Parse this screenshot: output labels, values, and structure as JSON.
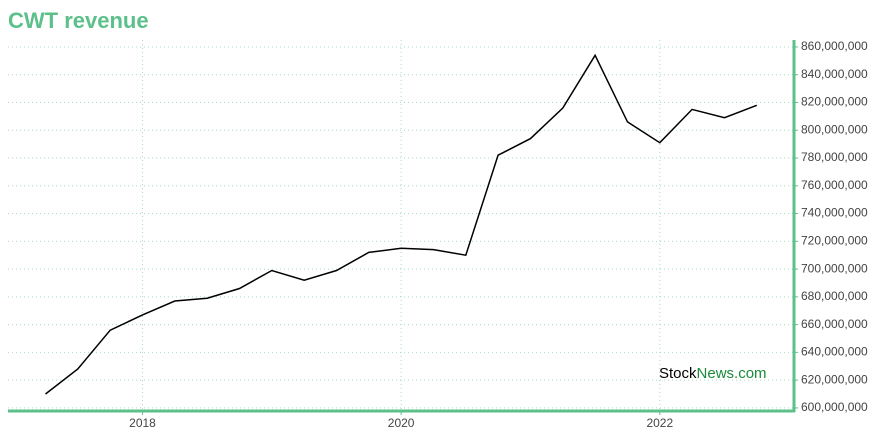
{
  "chart_data": {
    "type": "line",
    "title": "CWT revenue",
    "x": [
      2017.25,
      2017.5,
      2017.75,
      2018,
      2018.25,
      2018.5,
      2018.75,
      2019,
      2019.25,
      2019.5,
      2019.75,
      2020,
      2020.25,
      2020.5,
      2020.75,
      2021,
      2021.25,
      2021.5,
      2021.75,
      2022,
      2022.25,
      2022.5,
      2022.75
    ],
    "series": [
      {
        "color": "#000000",
        "values": [
          610000000,
          628000000,
          656000000,
          667000000,
          677000000,
          679000000,
          686000000,
          699000000,
          692000000,
          699000000,
          712000000,
          715000000,
          714000000,
          710000000,
          782000000,
          794000000,
          816000000,
          854000000,
          806000000,
          791000000,
          815000000,
          809000000,
          818000000
        ]
      }
    ],
    "xlim": [
      2016.96,
      2023.03
    ],
    "xticks": [
      2018,
      2020,
      2022
    ],
    "ylim": [
      598500000,
      865000000
    ],
    "yticks": [
      {
        "value": 600000000,
        "label": "600,000,000"
      },
      {
        "value": 620000000,
        "label": "620,000,000"
      },
      {
        "value": 640000000,
        "label": "640,000,000"
      },
      {
        "value": 660000000,
        "label": "660,000,000"
      },
      {
        "value": 680000000,
        "label": "680,000,000"
      },
      {
        "value": 700000000,
        "label": "700,000,000"
      },
      {
        "value": 720000000,
        "label": "720,000,000"
      },
      {
        "value": 740000000,
        "label": "740,000,000"
      },
      {
        "value": 760000000,
        "label": "760,000,000"
      },
      {
        "value": 780000000,
        "label": "780,000,000"
      },
      {
        "value": 800000000,
        "label": "800,000,000"
      },
      {
        "value": 820000000,
        "label": "820,000,000"
      },
      {
        "value": 840000000,
        "label": "840,000,000"
      },
      {
        "value": 860000000,
        "label": "860,000,000"
      }
    ],
    "grid": true,
    "axis_color": "#5cc08a",
    "watermark": {
      "prefix": "Stock",
      "suffix": "News.com"
    }
  }
}
